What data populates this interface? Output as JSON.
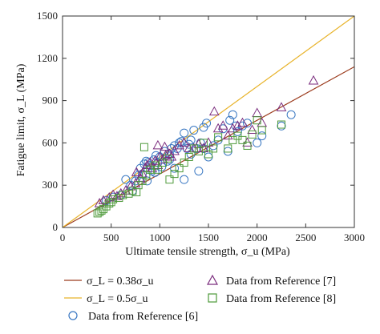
{
  "chart_data": {
    "type": "scatter",
    "xlabel": "Ultimate tensile strength, σ_u (MPa)",
    "ylabel": "Fatigue limit, σ_L (MPa)",
    "xlim": [
      0,
      3000
    ],
    "ylim": [
      0,
      1500
    ],
    "xticks": [
      0,
      500,
      1000,
      1500,
      2000,
      2500,
      3000
    ],
    "yticks": [
      0,
      300,
      600,
      900,
      1200,
      1500
    ],
    "grid": false,
    "lines": [
      {
        "name": "σ_L = 0.38σ_u",
        "slope": 0.38,
        "color": "#9c3c1e"
      },
      {
        "name": "σ_L = 0.5σ_u",
        "slope": 0.5,
        "color": "#e8b32a"
      }
    ],
    "series": [
      {
        "name": "Data from Reference [6]",
        "marker": "circle",
        "color": "#3a78c2",
        "points": [
          [
            450,
            190
          ],
          [
            520,
            215
          ],
          [
            600,
            230
          ],
          [
            650,
            340
          ],
          [
            700,
            300
          ],
          [
            720,
            260
          ],
          [
            750,
            330
          ],
          [
            780,
            370
          ],
          [
            800,
            420
          ],
          [
            820,
            380
          ],
          [
            840,
            450
          ],
          [
            860,
            470
          ],
          [
            880,
            460
          ],
          [
            900,
            440
          ],
          [
            920,
            400
          ],
          [
            940,
            480
          ],
          [
            960,
            510
          ],
          [
            980,
            460
          ],
          [
            1000,
            500
          ],
          [
            1020,
            430
          ],
          [
            1050,
            540
          ],
          [
            1080,
            470
          ],
          [
            1100,
            520
          ],
          [
            1120,
            560
          ],
          [
            1150,
            580
          ],
          [
            1180,
            560
          ],
          [
            1200,
            600
          ],
          [
            1220,
            610
          ],
          [
            1250,
            670
          ],
          [
            1280,
            560
          ],
          [
            1300,
            590
          ],
          [
            1320,
            620
          ],
          [
            1350,
            690
          ],
          [
            1380,
            560
          ],
          [
            1400,
            400
          ],
          [
            1420,
            600
          ],
          [
            1450,
            710
          ],
          [
            1480,
            740
          ],
          [
            1500,
            500
          ],
          [
            1550,
            580
          ],
          [
            1600,
            620
          ],
          [
            1650,
            700
          ],
          [
            1700,
            540
          ],
          [
            1720,
            760
          ],
          [
            1750,
            800
          ],
          [
            1780,
            720
          ],
          [
            1800,
            680
          ],
          [
            1850,
            720
          ],
          [
            1900,
            740
          ],
          [
            2000,
            600
          ],
          [
            2050,
            650
          ],
          [
            2250,
            720
          ],
          [
            2350,
            800
          ],
          [
            1450,
            560
          ],
          [
            1250,
            340
          ],
          [
            1100,
            480
          ],
          [
            950,
            390
          ],
          [
            870,
            330
          ],
          [
            1150,
            420
          ],
          [
            1320,
            520
          ]
        ]
      },
      {
        "name": "Data from Reference [7]",
        "marker": "triangle",
        "color": "#7b2d7e",
        "points": [
          [
            380,
            170
          ],
          [
            420,
            190
          ],
          [
            480,
            210
          ],
          [
            520,
            230
          ],
          [
            560,
            220
          ],
          [
            600,
            240
          ],
          [
            650,
            260
          ],
          [
            700,
            290
          ],
          [
            750,
            310
          ],
          [
            800,
            350
          ],
          [
            820,
            380
          ],
          [
            850,
            420
          ],
          [
            870,
            440
          ],
          [
            900,
            460
          ],
          [
            920,
            420
          ],
          [
            950,
            470
          ],
          [
            980,
            440
          ],
          [
            1000,
            500
          ],
          [
            1030,
            480
          ],
          [
            1050,
            570
          ],
          [
            1100,
            520
          ],
          [
            1150,
            540
          ],
          [
            1200,
            580
          ],
          [
            1250,
            600
          ],
          [
            1300,
            560
          ],
          [
            1350,
            560
          ],
          [
            1400,
            590
          ],
          [
            1450,
            560
          ],
          [
            1500,
            600
          ],
          [
            1560,
            820
          ],
          [
            1600,
            700
          ],
          [
            1650,
            720
          ],
          [
            1700,
            650
          ],
          [
            1750,
            700
          ],
          [
            1800,
            720
          ],
          [
            1850,
            740
          ],
          [
            1900,
            600
          ],
          [
            1950,
            690
          ],
          [
            2000,
            810
          ],
          [
            2050,
            740
          ],
          [
            2250,
            850
          ],
          [
            2580,
            1040
          ],
          [
            980,
            580
          ],
          [
            1060,
            510
          ],
          [
            1120,
            500
          ],
          [
            760,
            390
          ]
        ]
      },
      {
        "name": "Data from Reference [8]",
        "marker": "square",
        "color": "#4e9a3a",
        "points": [
          [
            360,
            100
          ],
          [
            380,
            110
          ],
          [
            400,
            120
          ],
          [
            420,
            130
          ],
          [
            450,
            150
          ],
          [
            480,
            170
          ],
          [
            520,
            200
          ],
          [
            580,
            210
          ],
          [
            620,
            230
          ],
          [
            680,
            240
          ],
          [
            720,
            260
          ],
          [
            780,
            300
          ],
          [
            820,
            330
          ],
          [
            860,
            370
          ],
          [
            900,
            410
          ],
          [
            950,
            440
          ],
          [
            980,
            410
          ],
          [
            1030,
            460
          ],
          [
            1080,
            490
          ],
          [
            1100,
            340
          ],
          [
            1150,
            380
          ],
          [
            1200,
            420
          ],
          [
            1250,
            460
          ],
          [
            1300,
            500
          ],
          [
            1350,
            560
          ],
          [
            1400,
            540
          ],
          [
            1450,
            600
          ],
          [
            1500,
            520
          ],
          [
            1550,
            560
          ],
          [
            1600,
            640
          ],
          [
            1700,
            560
          ],
          [
            1750,
            620
          ],
          [
            1800,
            650
          ],
          [
            1850,
            620
          ],
          [
            1900,
            580
          ],
          [
            1950,
            660
          ],
          [
            2000,
            760
          ],
          [
            2050,
            690
          ],
          [
            2250,
            730
          ],
          [
            840,
            570
          ],
          [
            760,
            250
          ],
          [
            500,
            180
          ]
        ]
      }
    ],
    "legend": {
      "placement": "bottom"
    }
  }
}
